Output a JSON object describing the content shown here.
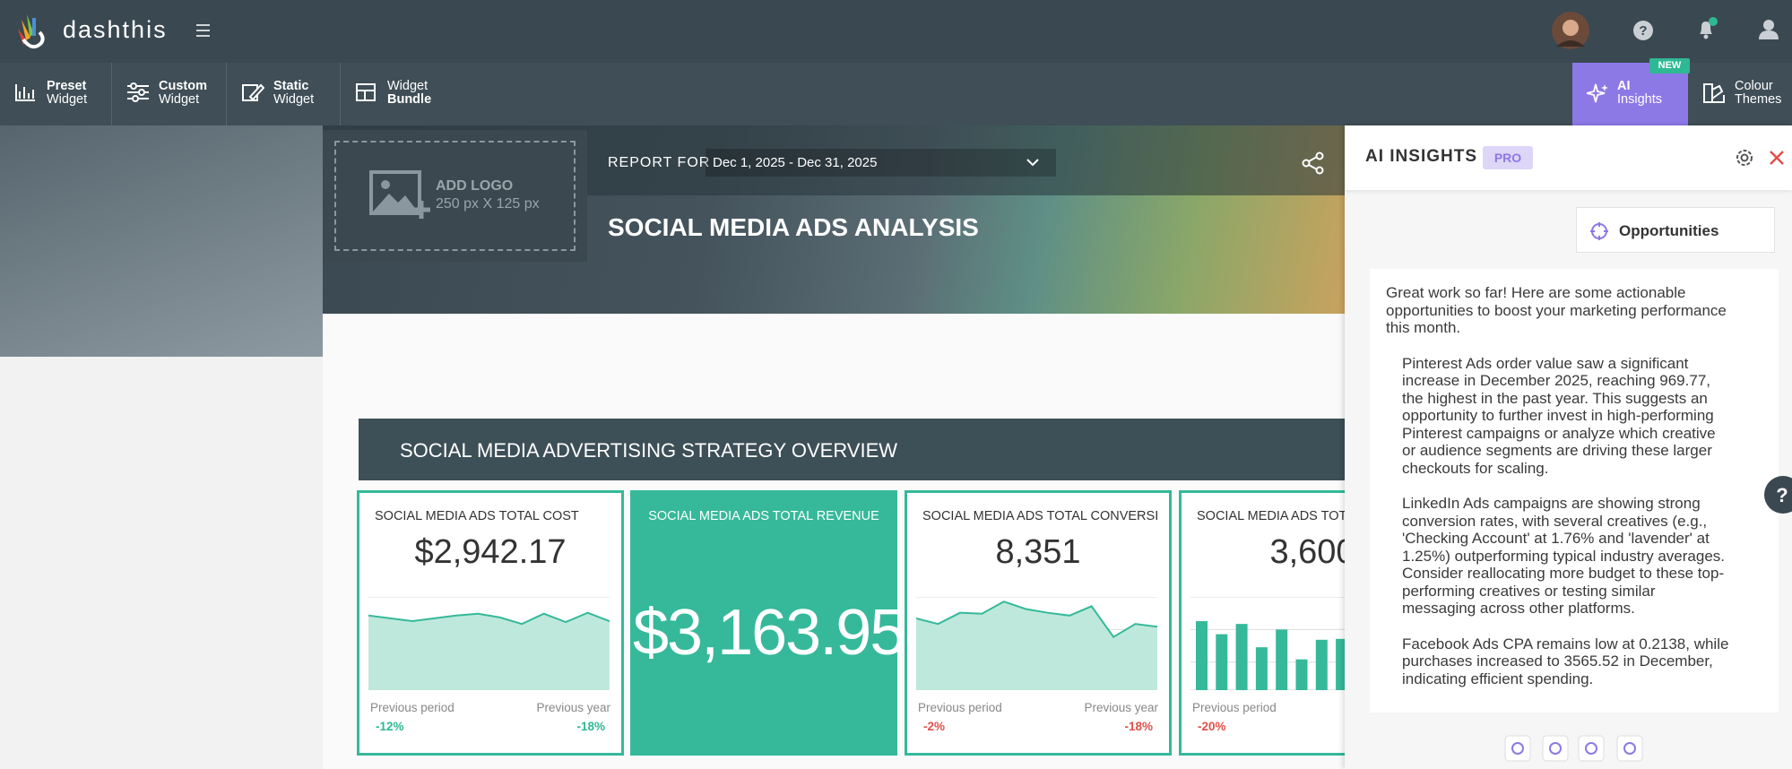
{
  "header": {
    "brand": "dashthis"
  },
  "toolbar": {
    "items": [
      {
        "line1": "Preset",
        "line2": "Widget"
      },
      {
        "line1": "Custom",
        "line2": "Widget"
      },
      {
        "line1": "Static",
        "line2": "Widget"
      },
      {
        "line1": "Widget",
        "line2": "Bundle"
      }
    ],
    "ai": {
      "line1": "AI",
      "line2": "Insights",
      "badge": "NEW"
    },
    "themes": {
      "line1": "Colour",
      "line2": "Themes"
    }
  },
  "report": {
    "logo_title": "ADD LOGO",
    "logo_size": "250 px X 125 px",
    "report_for": "REPORT FOR",
    "date_range": "Dec 1, 2025 - Dec 31, 2025",
    "title": "SOCIAL MEDIA ADS ANALYSIS",
    "section": "SOCIAL MEDIA ADVERTISING STRATEGY OVERVIEW"
  },
  "cards": [
    {
      "title": "SOCIAL MEDIA ADS TOTAL COST",
      "value": "$2,942.17",
      "chart": {
        "type": "area",
        "values": [
          80,
          77,
          74,
          77,
          80,
          82,
          78,
          71,
          82,
          73,
          83,
          74
        ],
        "ylim": [
          0,
          100
        ]
      },
      "comparisons": [
        {
          "label": "Previous period",
          "value": "-12%",
          "color": "#2fb894"
        },
        {
          "label": "Previous year",
          "value": "-18%",
          "color": "#2fb894"
        }
      ]
    },
    {
      "title": "SOCIAL MEDIA ADS TOTAL REVENUE",
      "value": "$3,163.95"
    },
    {
      "title": "SOCIAL MEDIA ADS TOTAL CONVERSI",
      "value": "8,351",
      "chart": {
        "type": "area",
        "values": [
          77,
          71,
          83,
          82,
          95,
          87,
          83,
          80,
          90,
          57,
          71,
          68
        ],
        "ylim": [
          0,
          100
        ]
      },
      "comparisons": [
        {
          "label": "Previous period",
          "value": "-2%",
          "color": "#e0504a"
        },
        {
          "label": "Previous year",
          "value": "-18%",
          "color": "#e0504a"
        }
      ]
    },
    {
      "title": "SOCIAL MEDIA ADS TOT",
      "value": "3,600",
      "chart": {
        "type": "bar",
        "values": [
          74,
          60,
          71,
          46,
          65,
          33,
          54,
          55
        ],
        "ylim": [
          0,
          100
        ]
      },
      "comparisons": [
        {
          "label": "Previous period",
          "value": "-20%",
          "color": "#e0504a"
        }
      ]
    }
  ],
  "ai_panel": {
    "title": "AI INSIGHTS",
    "badge": "PRO",
    "tab": "Opportunities",
    "intro": "Great work so far! Here are some actionable opportunities to boost your marketing performance this month.",
    "paragraphs": [
      "Pinterest Ads order value saw a significant increase in December 2025, reaching 969.77, the highest in the past year. This suggests an opportunity to further invest in high-performing Pinterest campaigns or analyze which creative or audience segments are driving these larger checkouts for scaling.",
      "LinkedIn Ads campaigns are showing strong conversion rates, with several creatives (e.g., 'Checking Account' at 1.76% and 'lavender' at 1.25%) outperforming typical industry averages. Consider reallocating more budget to these top-performing creatives or testing similar messaging across other platforms.",
      "Facebook Ads CPA remains low at 0.2138, while purchases increased to 3565.52 in December, indicating efficient spending."
    ]
  }
}
